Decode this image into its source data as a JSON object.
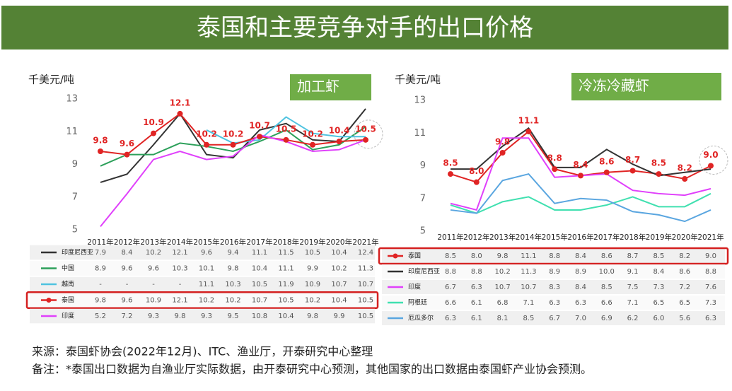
{
  "title": "泰国和主要竞争对手的出口价格",
  "chart_data": [
    {
      "type": "line",
      "title": "加工虾",
      "y_label": "千美元/吨",
      "categories": [
        "2011年",
        "2012年",
        "2013年",
        "2014年",
        "2015年",
        "2016年",
        "2017年",
        "2018年",
        "2019年",
        "2020年",
        "2021年"
      ],
      "ylim": [
        5,
        13
      ],
      "yticks": [
        5,
        7,
        9,
        11,
        13
      ],
      "series": [
        {
          "name": "印度尼西亚",
          "color": "#333333",
          "values": [
            7.9,
            8.4,
            10.2,
            12.1,
            9.6,
            9.4,
            11.1,
            11.5,
            10.5,
            10.4,
            12.4
          ],
          "value_labels": [
            "7.9",
            "8.4",
            "10.2",
            "12.1",
            "9.6",
            "9.4",
            "11.1",
            "11.5",
            "10.5",
            "10.4",
            "12.4"
          ]
        },
        {
          "name": "中国",
          "color": "#2ca05a",
          "values": [
            8.9,
            9.6,
            9.6,
            10.3,
            10.1,
            9.8,
            10.4,
            11.1,
            9.9,
            10.2,
            11.3
          ],
          "value_labels": [
            "8.9",
            "9.6",
            "9.6",
            "10.3",
            "10.1",
            "9.8",
            "10.4",
            "11.1",
            "9.9",
            "10.2",
            "11.3"
          ]
        },
        {
          "name": "越南",
          "color": "#4fc3e0",
          "values": [
            null,
            null,
            null,
            null,
            11.1,
            10.3,
            10.5,
            11.9,
            10.9,
            10.7,
            10.7
          ],
          "value_labels": [
            "-",
            "-",
            "-",
            "-",
            "11.1",
            "10.3",
            "10.5",
            "11.9",
            "10.9",
            "10.7",
            "10.7"
          ]
        },
        {
          "name": "泰国",
          "color": "#e02424",
          "markers": true,
          "values": [
            9.8,
            9.6,
            10.9,
            12.1,
            10.2,
            10.2,
            10.7,
            10.5,
            10.2,
            10.4,
            10.5
          ],
          "value_labels": [
            "9.8",
            "9.6",
            "10.9",
            "12.1",
            "10.2",
            "10.2",
            "10.7",
            "10.5",
            "10.2",
            "10.4",
            "10.5"
          ]
        },
        {
          "name": "印度",
          "color": "#e040fb",
          "values": [
            5.2,
            7.2,
            9.3,
            9.8,
            9.3,
            9.5,
            10.8,
            10.4,
            9.8,
            9.9,
            10.5
          ],
          "value_labels": [
            "5.2",
            "7.2",
            "9.3",
            "9.8",
            "9.3",
            "9.5",
            "10.8",
            "10.4",
            "9.8",
            "9.9",
            "10.5"
          ]
        }
      ]
    },
    {
      "type": "line",
      "title": "冷冻冷藏虾",
      "y_label": "千美元/吨",
      "categories": [
        "2011年",
        "2012年",
        "2013年",
        "2014年",
        "2015年",
        "2016年",
        "2017年",
        "2018年",
        "2019年",
        "2020年",
        "2021年"
      ],
      "ylim": [
        5,
        13
      ],
      "yticks": [
        5,
        7,
        9,
        11,
        13
      ],
      "series": [
        {
          "name": "泰国",
          "color": "#e02424",
          "markers": true,
          "values": [
            8.5,
            8.0,
            9.8,
            11.1,
            8.8,
            8.4,
            8.6,
            8.7,
            8.5,
            8.2,
            9.0
          ],
          "value_labels": [
            "8.5",
            "8.0",
            "9.8",
            "11.1",
            "8.8",
            "8.4",
            "8.6",
            "8.7",
            "8.5",
            "8.2",
            "9.0"
          ]
        },
        {
          "name": "印度尼西亚",
          "color": "#333333",
          "values": [
            8.8,
            8.8,
            10.2,
            11.3,
            8.9,
            8.9,
            10.0,
            9.1,
            8.4,
            8.6,
            8.8
          ],
          "value_labels": [
            "8.8",
            "8.8",
            "10.2",
            "11.3",
            "8.9",
            "8.9",
            "10.0",
            "9.1",
            "8.4",
            "8.6",
            "8.8"
          ]
        },
        {
          "name": "印度",
          "color": "#e040fb",
          "values": [
            6.7,
            6.3,
            10.7,
            10.7,
            8.3,
            8.4,
            8.5,
            7.5,
            7.3,
            7.2,
            7.6
          ],
          "value_labels": [
            "6.7",
            "6.3",
            "10.7",
            "10.7",
            "8.3",
            "8.4",
            "8.5",
            "7.5",
            "7.3",
            "7.2",
            "7.6"
          ]
        },
        {
          "name": "阿根廷",
          "color": "#40e0b0",
          "values": [
            6.6,
            6.1,
            6.8,
            7.1,
            6.3,
            6.3,
            6.6,
            7.1,
            6.5,
            6.5,
            7.3
          ],
          "value_labels": [
            "6.6",
            "6.1",
            "6.8",
            "7.1",
            "6.3",
            "6.3",
            "6.6",
            "7.1",
            "6.5",
            "6.5",
            "7.3"
          ]
        },
        {
          "name": "厄瓜多尔",
          "color": "#5aa6e0",
          "values": [
            6.3,
            6.1,
            8.1,
            8.5,
            6.7,
            7.0,
            6.9,
            6.2,
            6.0,
            5.6,
            6.3
          ],
          "value_labels": [
            "6.3",
            "6.1",
            "8.1",
            "8.5",
            "6.7",
            "7.0",
            "6.9",
            "6.2",
            "6.0",
            "5.6",
            "6.3"
          ]
        }
      ]
    }
  ],
  "notes": [
    "来源：泰国虾协会(2022年12月)、ITC、渔业厅，开泰研究中心整理",
    "备注：*泰国出口数据为自渔业厅实际数据，由开泰研究中心预测，其他国家的出口数据由泰国虾产业协会预测。"
  ]
}
